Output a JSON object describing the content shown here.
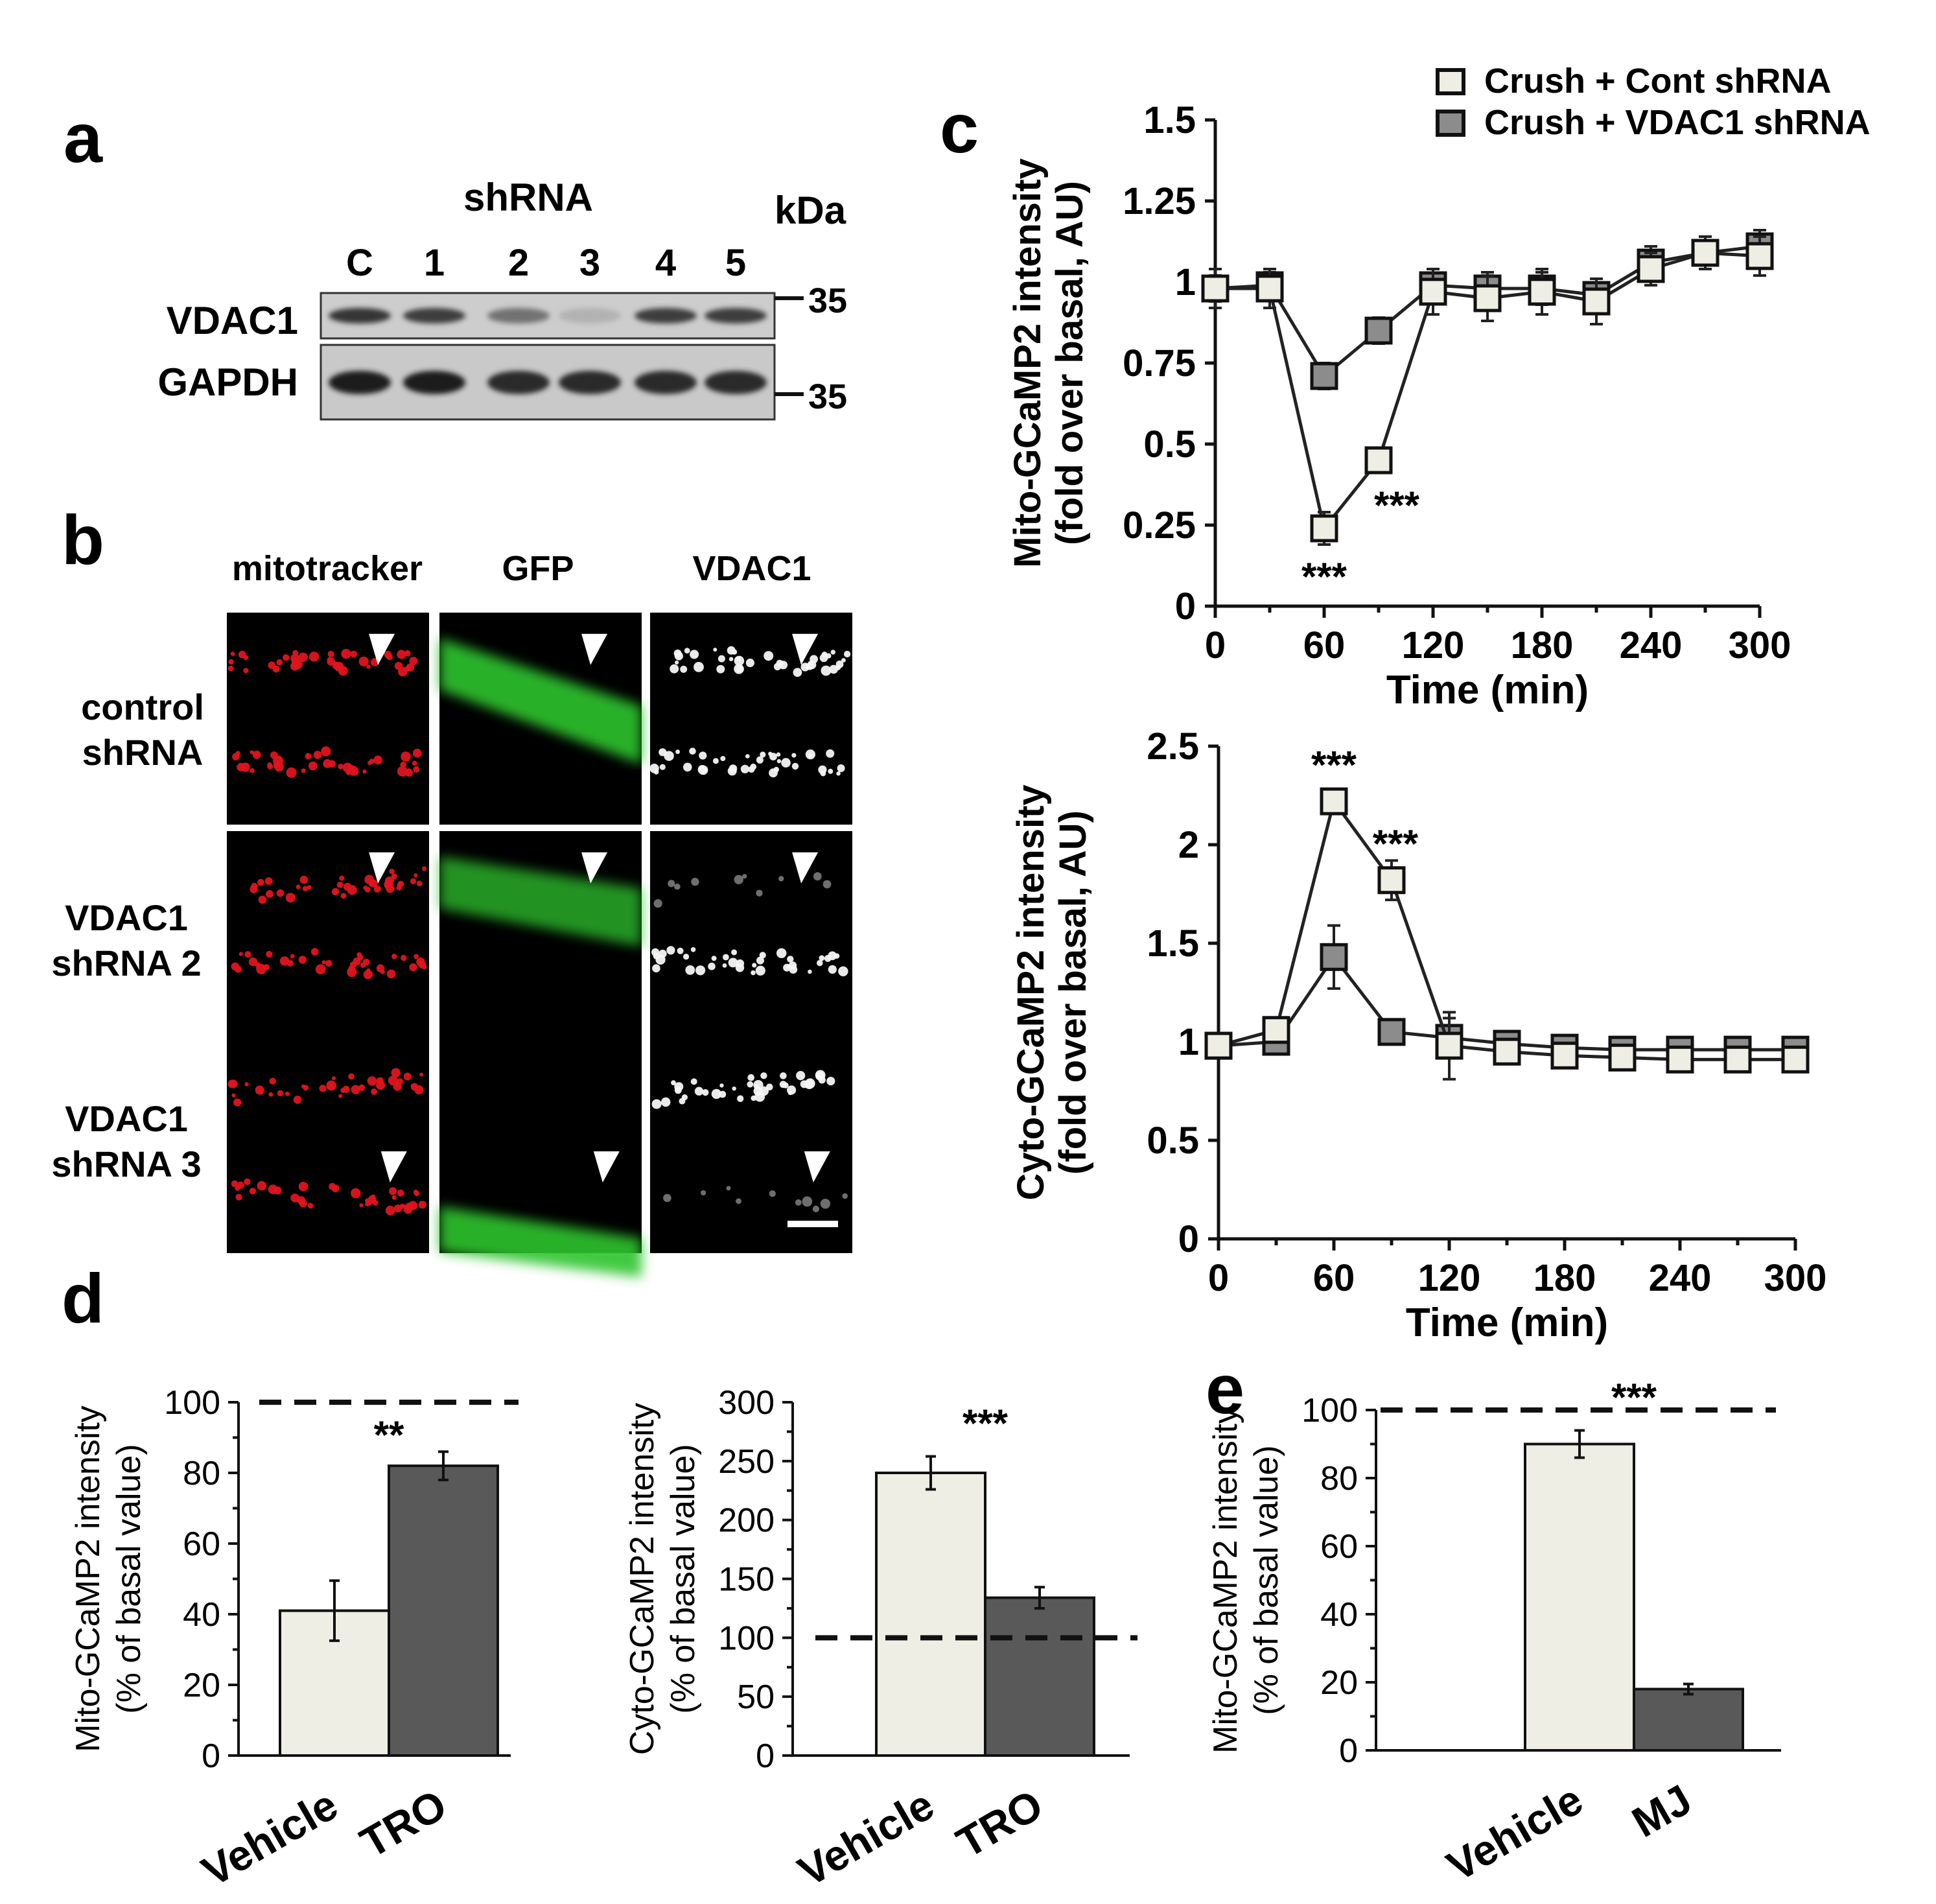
{
  "colors": {
    "light_bar": "#efeee4",
    "dark_bar": "#595959",
    "gray_marker": "#8c8c8c",
    "mito_red": "#e0141e",
    "gfp_green": "#2ec42e"
  },
  "panel_a": {
    "letter": "a",
    "shrna_label": "shRNA",
    "kda_label": "kDa",
    "lanes": [
      "C",
      "1",
      "2",
      "3",
      "4",
      "5"
    ],
    "rows": [
      {
        "label": "VDAC1",
        "marker": "35",
        "intensities": [
          0.85,
          0.8,
          0.55,
          0.25,
          0.8,
          0.8
        ]
      },
      {
        "label": "GAPDH",
        "marker": "35",
        "intensities": [
          0.95,
          0.95,
          0.9,
          0.9,
          0.9,
          0.9
        ]
      }
    ]
  },
  "panel_b": {
    "letter": "b",
    "columns": [
      "mitotracker",
      "GFP",
      "VDAC1"
    ],
    "rows": [
      {
        "line1": "control",
        "line2": "shRNA"
      },
      {
        "line1": "VDAC1",
        "line2": "shRNA 2"
      },
      {
        "line1": "VDAC1",
        "line2": "shRNA 3"
      }
    ]
  },
  "panel_c": {
    "letter": "c",
    "legend": [
      "Crush + Cont shRNA",
      "Crush + VDAC1 shRNA"
    ]
  },
  "panel_d": {
    "letter": "d"
  },
  "panel_e": {
    "letter": "e"
  },
  "chart_data": [
    {
      "id": "c_top",
      "type": "line",
      "title": "",
      "xlabel": "Time (min)",
      "ylabel_line1": "Mito-GCaMP2 intensity",
      "ylabel_line2": "(fold over basal, AU)",
      "xlim": [
        0,
        300
      ],
      "ylim": [
        0,
        1.5
      ],
      "xticks": [
        "0",
        "60",
        "120",
        "180",
        "240",
        "300"
      ],
      "yticks": [
        "0",
        "0.25",
        "0.5",
        "0.75",
        "1",
        "1.25",
        "1.5"
      ],
      "x": [
        0,
        30,
        60,
        90,
        120,
        150,
        180,
        210,
        240,
        270,
        300
      ],
      "series": [
        {
          "name": "Crush + Cont shRNA",
          "fill": "light",
          "values": [
            0.98,
            0.98,
            0.24,
            0.45,
            0.97,
            0.95,
            0.97,
            0.94,
            1.04,
            1.09,
            1.08
          ],
          "errors": [
            0.06,
            0.06,
            0.05,
            0.02,
            0.07,
            0.07,
            0.07,
            0.07,
            0.05,
            0.05,
            0.06
          ]
        },
        {
          "name": "Crush + VDAC1 shRNA",
          "fill": "dark",
          "values": [
            0.98,
            0.99,
            0.71,
            0.85,
            0.99,
            0.98,
            0.98,
            0.96,
            1.06,
            1.09,
            1.11
          ],
          "errors": [
            0.04,
            0.04,
            0.04,
            0.04,
            0.05,
            0.05,
            0.05,
            0.05,
            0.05,
            0.05,
            0.05
          ]
        }
      ],
      "annotations": [
        {
          "text": "***",
          "x": 60,
          "y": 0.1
        },
        {
          "text": "***",
          "x": 100,
          "y": 0.32
        }
      ]
    },
    {
      "id": "c_bottom",
      "type": "line",
      "title": "",
      "xlabel": "Time (min)",
      "ylabel_line1": "Cyto-GCaMP2 intensity",
      "ylabel_line2": "(fold over basal, AU)",
      "xlim": [
        0,
        300
      ],
      "ylim": [
        0,
        2.5
      ],
      "xticks": [
        "0",
        "60",
        "120",
        "180",
        "240",
        "300"
      ],
      "yticks": [
        "0",
        "0.5",
        "1",
        "1.5",
        "2",
        "2.5"
      ],
      "x": [
        0,
        30,
        60,
        90,
        120,
        150,
        180,
        210,
        240,
        270,
        300
      ],
      "series": [
        {
          "name": "Crush + Cont shRNA",
          "fill": "light",
          "values": [
            0.98,
            1.06,
            2.22,
            1.82,
            0.98,
            0.95,
            0.93,
            0.92,
            0.91,
            0.91,
            0.91
          ],
          "errors": [
            0.05,
            0.05,
            0.05,
            0.1,
            0.17,
            0.05,
            0.05,
            0.05,
            0.05,
            0.05,
            0.05
          ]
        },
        {
          "name": "Crush + VDAC1 shRNA",
          "fill": "dark",
          "values": [
            0.98,
            1.0,
            1.43,
            1.05,
            1.02,
            0.99,
            0.97,
            0.96,
            0.96,
            0.96,
            0.96
          ],
          "errors": [
            0.05,
            0.05,
            0.16,
            0.05,
            0.1,
            0.05,
            0.05,
            0.05,
            0.05,
            0.05,
            0.05
          ]
        }
      ],
      "annotations": [
        {
          "text": "***",
          "x": 60,
          "y": 2.42
        },
        {
          "text": "***",
          "x": 92,
          "y": 2.02
        }
      ]
    },
    {
      "id": "d_left",
      "type": "bar",
      "ylabel_line1": "Mito-GCaMP2 intensity",
      "ylabel_line2": "(% of basal value)",
      "categories": [
        "Vehicle",
        "TRO"
      ],
      "values": [
        41,
        82
      ],
      "errors": [
        8.5,
        4
      ],
      "ylim": [
        0,
        100
      ],
      "yticks": [
        "0",
        "20",
        "40",
        "60",
        "80",
        "100"
      ],
      "reference_line": 100,
      "annotation": "**",
      "annotation_y": 91
    },
    {
      "id": "d_right",
      "type": "bar",
      "ylabel_line1": "Cyto-GCaMP2 intensity",
      "ylabel_line2": "(% of basal value)",
      "categories": [
        "Vehicle",
        "TRO"
      ],
      "values": [
        240,
        134
      ],
      "errors": [
        14,
        9
      ],
      "ylim": [
        0,
        300
      ],
      "yticks": [
        "0",
        "50",
        "100",
        "150",
        "200",
        "250",
        "300"
      ],
      "reference_line": 100,
      "annotation": "***",
      "annotation_y": 283
    },
    {
      "id": "e",
      "type": "bar",
      "ylabel_line1": "Mito-GCaMP2 intensity",
      "ylabel_line2": "(% of basal value)",
      "categories": [
        "Vehicle",
        "MJ"
      ],
      "values": [
        90,
        18
      ],
      "errors": [
        4,
        1.5
      ],
      "ylim": [
        0,
        100
      ],
      "yticks": [
        "0",
        "20",
        "40",
        "60",
        "80",
        "100"
      ],
      "reference_line": 100,
      "annotation": "***",
      "annotation_y": 104
    }
  ]
}
